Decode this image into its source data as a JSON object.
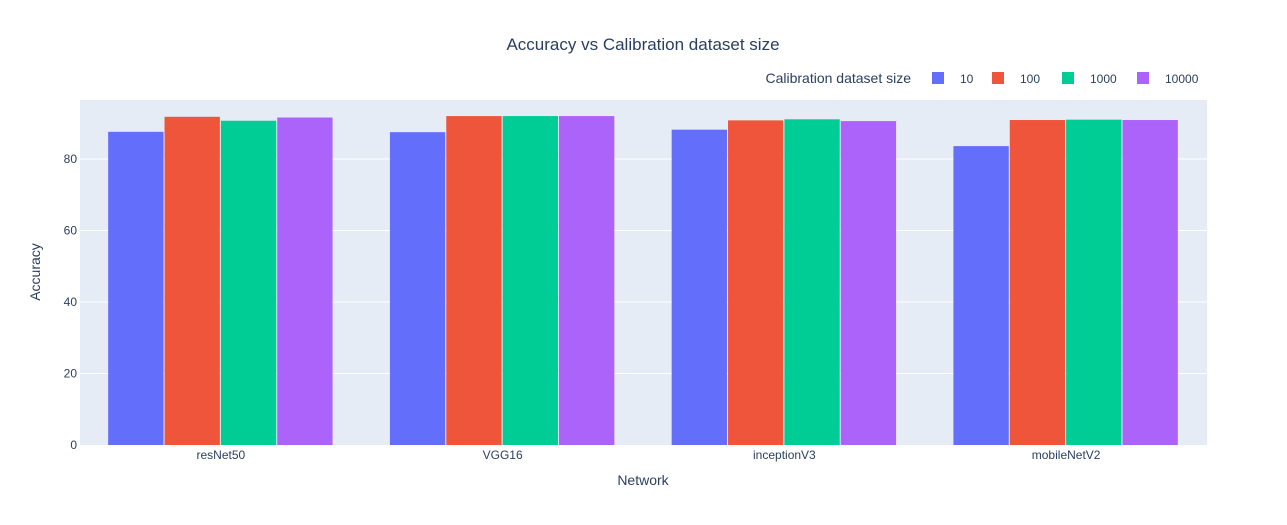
{
  "chart_data": {
    "type": "bar",
    "title": "Accuracy vs Calibration dataset size",
    "xlabel": "Network",
    "ylabel": "Accuracy",
    "categories": [
      "resNet50",
      "VGG16",
      "inceptionV3",
      "mobileNetV2"
    ],
    "ylim": [
      0,
      96.5
    ],
    "yticks": [
      0,
      20,
      40,
      60,
      80
    ],
    "grid": true,
    "legend": {
      "title": "Calibration dataset size",
      "placement": "top-right",
      "orientation": "horizontal"
    },
    "series": [
      {
        "name": "10",
        "color": "#636efa",
        "values": [
          87.6,
          87.5,
          88.2,
          83.6
        ]
      },
      {
        "name": "100",
        "color": "#ef553b",
        "values": [
          91.8,
          92.0,
          90.8,
          90.9
        ]
      },
      {
        "name": "1000",
        "color": "#00cc96",
        "values": [
          90.7,
          92.0,
          91.1,
          91.0
        ]
      },
      {
        "name": "10000",
        "color": "#ab63fa",
        "values": [
          91.6,
          92.0,
          90.6,
          90.9
        ]
      }
    ]
  }
}
